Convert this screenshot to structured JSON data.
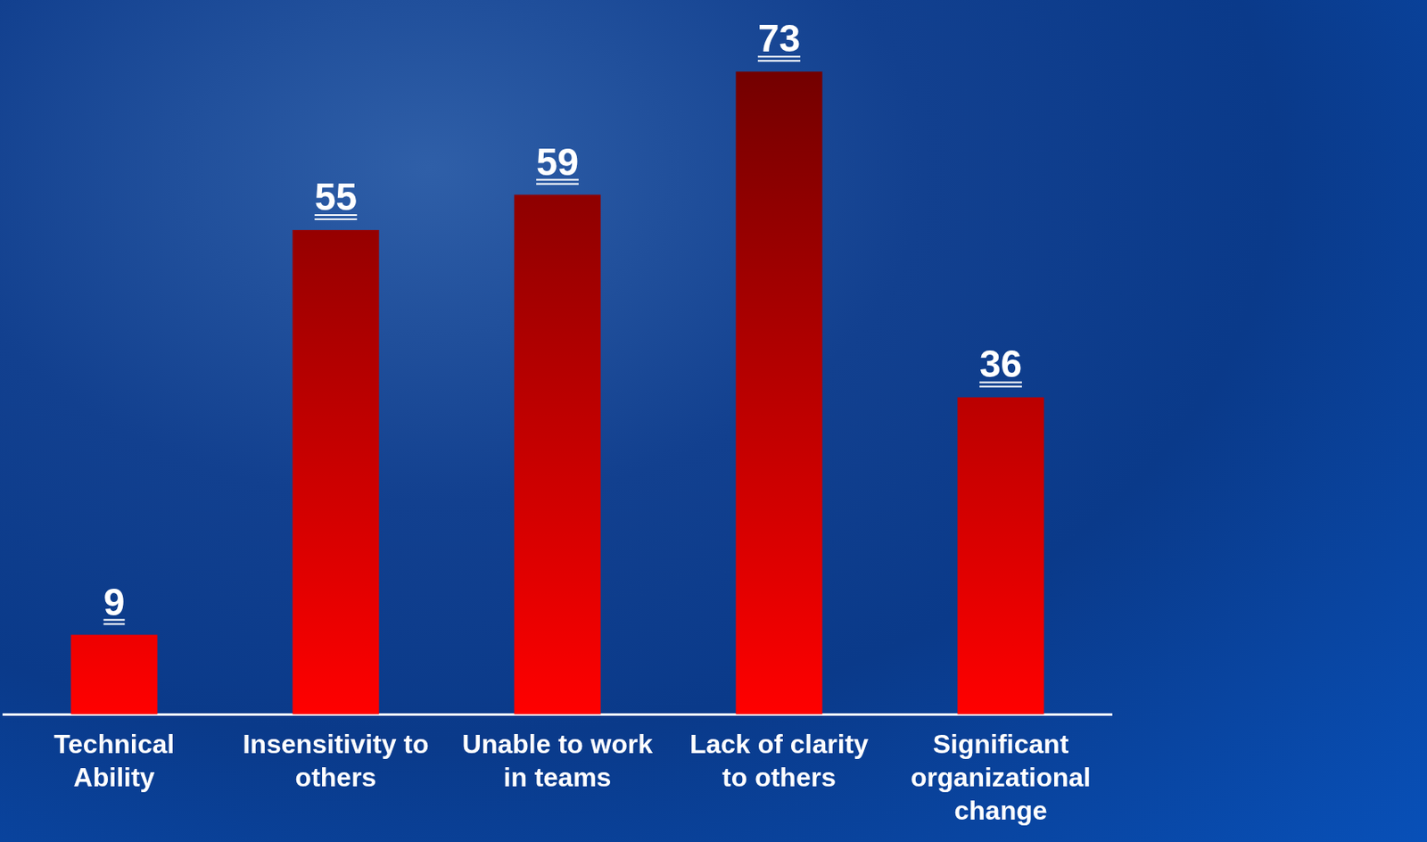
{
  "chart_data": {
    "type": "bar",
    "categories": [
      "Technical Ability",
      "Insensitivity to others",
      "Unable to work in teams",
      "Lack of clarity to others",
      "Significant organizational change"
    ],
    "values": [
      9,
      55,
      59,
      73,
      36
    ],
    "color": "#ff0000",
    "ylim": [
      0,
      80
    ],
    "grid": false,
    "data_labels": true,
    "tick_labels": "x"
  }
}
